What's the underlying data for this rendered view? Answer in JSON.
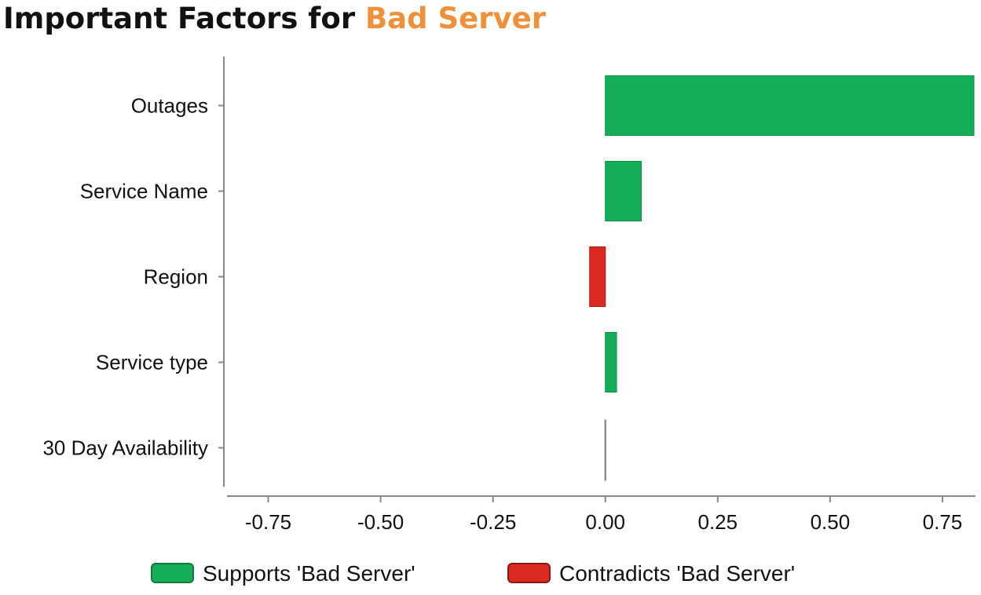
{
  "title": {
    "prefix": "Important Factors for",
    "highlight": "Bad Server"
  },
  "colors": {
    "supports": "#13ae57",
    "contradicts": "#dc2a22",
    "highlight": "#f0903a",
    "axis": "#888888"
  },
  "chart_data": {
    "type": "bar",
    "orientation": "horizontal",
    "title": "Important Factors for Bad Server",
    "categories": [
      "Outages",
      "Service Name",
      "Region",
      "Service type",
      "30 Day Availability"
    ],
    "values": [
      0.82,
      0.08,
      -0.035,
      0.025,
      0.0
    ],
    "xlim": [
      -0.84,
      0.82
    ],
    "xticks": [
      -0.75,
      -0.5,
      -0.25,
      0.0,
      0.25,
      0.5,
      0.75
    ],
    "xtick_labels": [
      "-0.75",
      "-0.50",
      "-0.25",
      "0.00",
      "0.25",
      "0.50",
      "0.75"
    ],
    "xlabel": "",
    "ylabel": "",
    "grid": false,
    "legend": [
      {
        "label": "Supports 'Bad Server'",
        "sign": "positive"
      },
      {
        "label": "Contradicts 'Bad Server'",
        "sign": "negative"
      }
    ],
    "legend_position": "bottom"
  }
}
